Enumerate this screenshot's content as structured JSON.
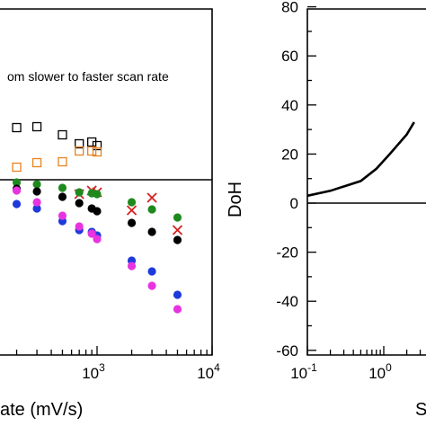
{
  "chart_data": [
    {
      "type": "scatter",
      "xscale": "log",
      "xlim": [
        100,
        10000
      ],
      "x_ticks": [
        {
          "value": 1000,
          "base": "10",
          "exp": "3"
        },
        {
          "value": 10000,
          "base": "10",
          "exp": "4"
        }
      ],
      "xlabel": "ate (mV/s)",
      "annotation": "om slower  to faster scan rate",
      "reference_line": true,
      "series": [
        {
          "marker": "open-square",
          "color": "#000000",
          "points": [
            [
              200,
              142
            ],
            [
              300,
              141
            ],
            [
              500,
              150
            ],
            [
              700,
              160
            ],
            [
              900,
              158
            ],
            [
              1000,
              162
            ]
          ]
        },
        {
          "marker": "open-square",
          "color": "#e8821e",
          "points": [
            [
              200,
              186
            ],
            [
              300,
              181
            ],
            [
              500,
              180
            ],
            [
              700,
              168
            ],
            [
              900,
              168
            ],
            [
              1000,
              169
            ]
          ]
        },
        {
          "marker": "x",
          "color": "#d62020",
          "points": [
            [
              700,
              216
            ],
            [
              900,
              212
            ],
            [
              1000,
              214
            ],
            [
              2000,
              234
            ],
            [
              3000,
              220
            ],
            [
              5000,
              256
            ]
          ]
        },
        {
          "marker": "dot",
          "color": "#1e8a1e",
          "points": [
            [
              200,
              203
            ],
            [
              300,
              205
            ],
            [
              500,
              209
            ],
            [
              700,
              214
            ],
            [
              900,
              215
            ],
            [
              1000,
              216
            ],
            [
              2000,
              225
            ],
            [
              3000,
              233
            ],
            [
              5000,
              242
            ]
          ]
        },
        {
          "marker": "dot",
          "color": "#000000",
          "points": [
            [
              200,
              210
            ],
            [
              300,
              213
            ],
            [
              500,
              219
            ],
            [
              700,
              226
            ],
            [
              900,
              232
            ],
            [
              1000,
              235
            ],
            [
              2000,
              248
            ],
            [
              3000,
              258
            ],
            [
              5000,
              267
            ]
          ]
        },
        {
          "marker": "dot",
          "color": "#1f3adb",
          "points": [
            [
              200,
              227
            ],
            [
              300,
              232
            ],
            [
              500,
              246
            ],
            [
              700,
              256
            ],
            [
              900,
              258
            ],
            [
              1000,
              262
            ],
            [
              2000,
              290
            ],
            [
              3000,
              302
            ],
            [
              5000,
              328
            ]
          ]
        },
        {
          "marker": "dot",
          "color": "#e833e0",
          "points": [
            [
              200,
              212
            ],
            [
              300,
              225
            ],
            [
              500,
              240
            ],
            [
              700,
              252
            ],
            [
              900,
              260
            ],
            [
              1000,
              266
            ],
            [
              2000,
              296
            ],
            [
              3000,
              318
            ],
            [
              5000,
              344
            ]
          ]
        }
      ]
    },
    {
      "type": "line",
      "xscale": "log",
      "xlim": [
        0.1,
        10
      ],
      "ylim": [
        -60,
        80
      ],
      "y_ticks": [
        "80",
        "60",
        "40",
        "20",
        "0",
        "-20",
        "-40",
        "-60"
      ],
      "x_ticks": [
        {
          "value": 0.1,
          "base": "10",
          "exp": "-1"
        },
        {
          "value": 1,
          "base": "10",
          "exp": "0"
        }
      ],
      "ylabel": "DoH",
      "xlabel": "S",
      "reference_line_y": 0,
      "series": [
        {
          "color": "#000000",
          "points": [
            [
              0.1,
              3
            ],
            [
              0.2,
              5
            ],
            [
              0.5,
              9
            ],
            [
              0.8,
              14
            ],
            [
              1.2,
              20
            ],
            [
              2,
              28
            ],
            [
              2.5,
              33
            ]
          ]
        }
      ]
    }
  ]
}
